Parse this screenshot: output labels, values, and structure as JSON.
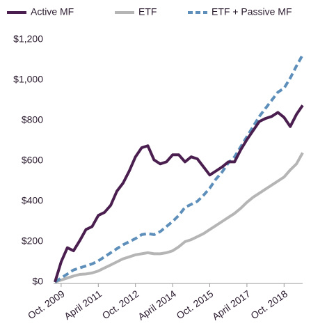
{
  "chart_data": {
    "type": "line",
    "categories": [
      null,
      "Oct. 2009",
      null,
      null,
      null,
      null,
      null,
      "April 2011",
      null,
      null,
      null,
      null,
      null,
      "Oct. 2012",
      null,
      null,
      null,
      null,
      null,
      "April 2014",
      null,
      null,
      null,
      null,
      null,
      "Oct. 2015",
      null,
      null,
      null,
      null,
      null,
      "April 2017",
      null,
      null,
      null,
      null,
      null,
      "Oct. 2018",
      null,
      null,
      null
    ],
    "series": [
      {
        "name": "Active MF",
        "color": "#4a1f4f",
        "dash": false,
        "values": [
          0,
          100,
          170,
          155,
          205,
          260,
          275,
          330,
          345,
          380,
          450,
          490,
          550,
          620,
          665,
          675,
          605,
          585,
          595,
          630,
          630,
          595,
          620,
          610,
          570,
          530,
          550,
          570,
          595,
          595,
          655,
          705,
          750,
          795,
          810,
          820,
          840,
          815,
          770,
          830,
          875
        ]
      },
      {
        "name": "ETF",
        "color": "#b5b5b5",
        "dash": false,
        "values": [
          0,
          10,
          20,
          30,
          38,
          40,
          45,
          55,
          70,
          85,
          100,
          115,
          125,
          135,
          140,
          145,
          140,
          140,
          145,
          155,
          175,
          200,
          210,
          225,
          240,
          260,
          280,
          300,
          320,
          340,
          365,
          395,
          420,
          440,
          460,
          480,
          500,
          520,
          555,
          585,
          640
        ]
      },
      {
        "name": "ETF + Passive MF",
        "color": "#5d8fba",
        "dash": true,
        "values": [
          0,
          20,
          40,
          60,
          70,
          80,
          90,
          105,
          125,
          145,
          165,
          185,
          200,
          215,
          235,
          240,
          235,
          250,
          275,
          300,
          330,
          370,
          385,
          400,
          430,
          465,
          510,
          545,
          590,
          620,
          670,
          720,
          770,
          820,
          860,
          900,
          940,
          960,
          1010,
          1070,
          1125
        ]
      }
    ],
    "ylim": [
      0,
      1200
    ],
    "yticks": [
      {
        "value": 0,
        "label": "$0"
      },
      {
        "value": 200,
        "label": "$200"
      },
      {
        "value": 400,
        "label": "$400"
      },
      {
        "value": 600,
        "label": "$600"
      },
      {
        "value": 800,
        "label": "$800"
      },
      {
        "value": 1000,
        "label": "$1,000"
      },
      {
        "value": 1200,
        "label": "$1,200"
      }
    ],
    "legend": "top"
  }
}
